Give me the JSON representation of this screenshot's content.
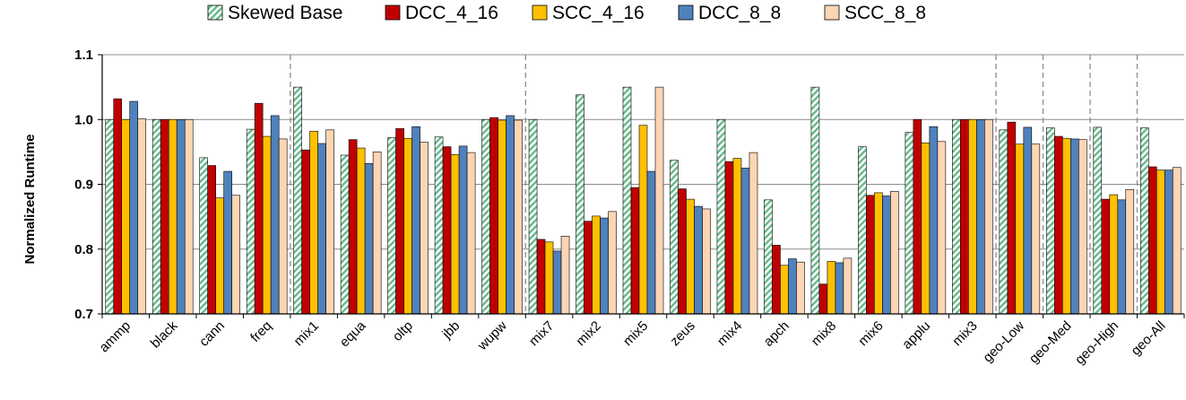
{
  "chart_data": {
    "type": "bar",
    "ylabel": "Normalized Runtime",
    "ylim": [
      0.7,
      1.1
    ],
    "yticks": [
      "0.7",
      "0.8",
      "0.9",
      "1.0",
      "1.1"
    ],
    "grid": "horizontal",
    "legend_position": "top",
    "categories": [
      "ammp",
      "black",
      "cann",
      "freq",
      "mix1",
      "equa",
      "oltp",
      "jbb",
      "wupw",
      "mix7",
      "mix2",
      "mix5",
      "zeus",
      "mix4",
      "apch",
      "mix8",
      "mix6",
      "applu",
      "mix3",
      "geo-Low",
      "geo-Med",
      "geo-High",
      "geo-All"
    ],
    "separators_after": [
      "freq",
      "wupw",
      "mix3",
      "geo-Low",
      "geo-Med",
      "geo-High"
    ],
    "series": [
      {
        "name": "Skewed Base",
        "color": "#d9f2e6",
        "pattern": "diagonal-hatch",
        "values": [
          1.0,
          1.0,
          0.941,
          0.985,
          1.05,
          0.945,
          0.972,
          0.973,
          1.0,
          1.0,
          1.038,
          1.05,
          0.937,
          1.0,
          0.876,
          1.05,
          0.958,
          0.98,
          1.0,
          0.984,
          0.987,
          0.988,
          0.987
        ]
      },
      {
        "name": "DCC_4_16",
        "color": "#c00000",
        "values": [
          1.032,
          1.0,
          0.929,
          1.025,
          0.953,
          0.969,
          0.986,
          0.958,
          1.003,
          0.815,
          0.843,
          0.895,
          0.893,
          0.935,
          0.806,
          0.746,
          0.883,
          1.0,
          1.0,
          0.996,
          0.974,
          0.877,
          0.927
        ]
      },
      {
        "name": "SCC_4_16",
        "color": "#ffc000",
        "values": [
          1.0,
          1.0,
          0.879,
          0.974,
          0.982,
          0.956,
          0.971,
          0.946,
          0.999,
          0.811,
          0.851,
          0.991,
          0.877,
          0.94,
          0.775,
          0.781,
          0.887,
          0.964,
          1.0,
          0.962,
          0.971,
          0.884,
          0.922
        ]
      },
      {
        "name": "DCC_8_8",
        "color": "#4f81bd",
        "values": [
          1.028,
          1.0,
          0.92,
          1.006,
          0.963,
          0.932,
          0.989,
          0.959,
          1.006,
          0.797,
          0.848,
          0.92,
          0.866,
          0.925,
          0.785,
          0.779,
          0.882,
          0.989,
          1.0,
          0.988,
          0.97,
          0.876,
          0.922
        ]
      },
      {
        "name": "SCC_8_8",
        "color": "#fcd5b4",
        "values": [
          1.001,
          1.0,
          0.883,
          0.97,
          0.984,
          0.95,
          0.965,
          0.949,
          0.999,
          0.82,
          0.858,
          1.05,
          0.862,
          0.949,
          0.78,
          0.786,
          0.889,
          0.966,
          1.0,
          0.962,
          0.969,
          0.892,
          0.926
        ]
      }
    ]
  }
}
